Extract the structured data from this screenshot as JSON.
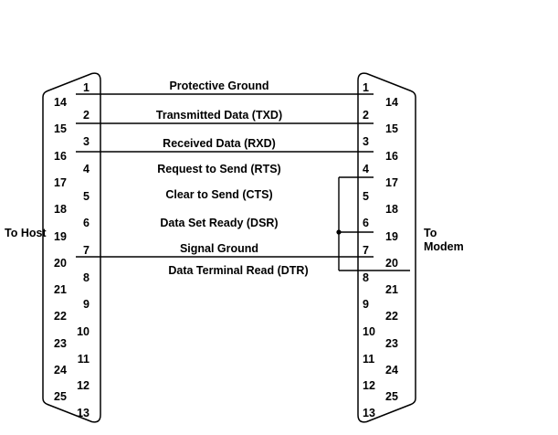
{
  "connectors": {
    "left": {
      "side_label": "To Host",
      "inner_pins": [
        "1",
        "2",
        "3",
        "4",
        "5",
        "6",
        "7",
        "8",
        "9",
        "10",
        "11",
        "12",
        "13"
      ],
      "outer_pins": [
        "14",
        "15",
        "16",
        "17",
        "18",
        "19",
        "20",
        "21",
        "22",
        "23",
        "24",
        "25"
      ]
    },
    "right": {
      "side_label": "To Modem",
      "inner_pins": [
        "1",
        "2",
        "3",
        "4",
        "5",
        "6",
        "7",
        "8",
        "9",
        "10",
        "11",
        "12",
        "13"
      ],
      "outer_pins": [
        "14",
        "15",
        "16",
        "17",
        "18",
        "19",
        "20",
        "21",
        "22",
        "23",
        "24",
        "25"
      ]
    }
  },
  "signals": [
    {
      "pin": "1",
      "label": "Protective Ground",
      "connection": "straight-through"
    },
    {
      "pin": "2",
      "label": "Transmitted Data (TXD)",
      "connection": "straight-through"
    },
    {
      "pin": "3",
      "label": "Received Data (RXD)",
      "connection": "straight-through"
    },
    {
      "pin": "4",
      "label": "Request to Send (RTS)",
      "connection": "modem-side-jumper"
    },
    {
      "pin": "5",
      "label": "Clear to Send (CTS)",
      "connection": "label-only"
    },
    {
      "pin": "6",
      "label": "Data Set Ready (DSR)",
      "connection": "modem-side-jumper"
    },
    {
      "pin": "7",
      "label": "Signal Ground",
      "connection": "straight-through"
    },
    {
      "pin": "20",
      "label": "Data Terminal Read (DTR)",
      "connection": "modem-side-jumper"
    }
  ],
  "jumper": {
    "side": "modem",
    "pins": [
      "4",
      "6",
      "20"
    ]
  },
  "colors": {
    "line": "#000000",
    "text": "#000000",
    "background": "#ffffff"
  }
}
